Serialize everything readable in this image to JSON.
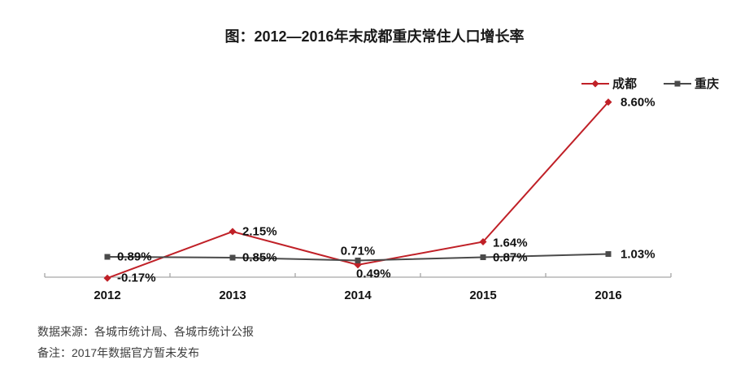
{
  "title": "图：2012—2016年末成都重庆常住人口增长率",
  "footer": {
    "source": "数据来源：各城市统计局、各城市统计公报",
    "note": "备注：2017年数据官方暂未发布"
  },
  "colors": {
    "chengdu_red": "#C02027",
    "chongqing_gray": "#4A4A4A",
    "axis_gray": "#A6A6A6",
    "label_text": "#111111",
    "footer_text": "#3D3D3D"
  },
  "chart_data": {
    "type": "line",
    "title": "图：2012—2016年末成都重庆常住人口增长率",
    "categories": [
      "2012",
      "2013",
      "2014",
      "2015",
      "2016"
    ],
    "series": [
      {
        "name": "成都",
        "marker": "diamond",
        "color": "#C02027",
        "values": [
          -0.17,
          2.15,
          0.49,
          1.64,
          8.6
        ],
        "labels": [
          "-0.17%",
          "2.15%",
          "0.49%",
          "1.64%",
          "8.60%"
        ]
      },
      {
        "name": "重庆",
        "marker": "square",
        "color": "#4A4A4A",
        "values": [
          0.89,
          0.85,
          0.71,
          0.87,
          1.03
        ],
        "labels": [
          "0.89%",
          "0.85%",
          "0.71%",
          "0.87%",
          "1.03%"
        ]
      }
    ],
    "xlabel": "",
    "ylabel": "",
    "y_axis_visible": false,
    "gridlines": false,
    "data_labels": true,
    "legend_position": "top-right"
  }
}
